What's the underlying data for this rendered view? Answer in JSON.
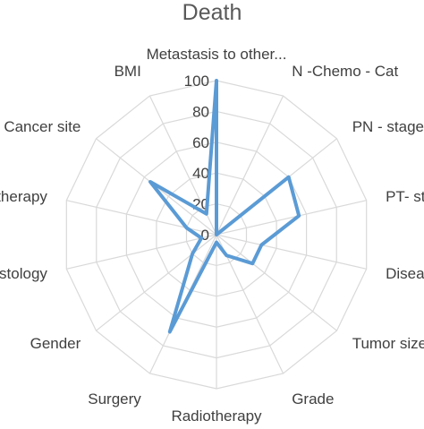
{
  "chart_data": {
    "type": "radar",
    "title": "Death",
    "categories": [
      "Metastasis to other...",
      "N -Chemo - Cat",
      "PN - stage",
      "PT- stage",
      "Disease",
      "Tumor size",
      "Grade",
      "Radiotherapy",
      "Surgery",
      "Gender",
      "Histology",
      "Chemotherapy",
      "Cancer site",
      "BMI"
    ],
    "series": [
      {
        "values": [
          100,
          0,
          60,
          55,
          30,
          30,
          15,
          5,
          70,
          20,
          10,
          20,
          55,
          15
        ]
      }
    ],
    "r_ticks": [
      0,
      20,
      40,
      60,
      80,
      100
    ],
    "r_tick_labels": [
      "0",
      "20",
      "40",
      "60",
      "80",
      "100"
    ],
    "rlim": [
      0,
      100
    ],
    "grid": true,
    "legend": "none",
    "colors": {
      "series": "#5b9bd5",
      "grid": "#d9d9d9",
      "text": "#404040",
      "title": "#595959"
    }
  }
}
